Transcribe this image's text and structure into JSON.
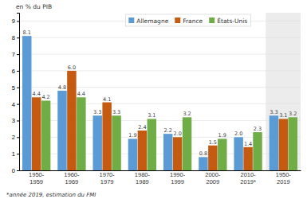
{
  "chart_data": {
    "type": "bar",
    "ylabel": "en % du PIB",
    "footnote": "*année 2019, estimation du FMI",
    "categories": [
      "1950-\n1959",
      "1960-\n1969",
      "1970-\n1979",
      "1980-\n1989",
      "1990-\n1999",
      "2000-\n2009",
      "2010-\n2019*",
      "1950-\n2019"
    ],
    "series": [
      {
        "name": "Allemagne",
        "color": "#5b9bd5",
        "values": [
          8.1,
          4.8,
          3.3,
          1.9,
          2.2,
          0.8,
          2.0,
          3.3
        ],
        "value_labels": [
          "8.1",
          "4.8",
          "3.3",
          "1.9",
          "2.2",
          "0.8",
          "2.0",
          "3.3"
        ]
      },
      {
        "name": "France",
        "color": "#c55a11",
        "values": [
          4.4,
          6.0,
          4.1,
          2.4,
          2.0,
          1.5,
          1.4,
          3.1
        ],
        "value_labels": [
          "4.4",
          "6.0",
          "4.1",
          "2.4",
          "2.0",
          "1.5",
          "1.4",
          "3.1"
        ]
      },
      {
        "name": "États-Unis",
        "color": "#70ad47",
        "values": [
          4.2,
          4.4,
          3.3,
          3.1,
          3.2,
          1.9,
          2.3,
          3.2
        ],
        "value_labels": [
          "4.2",
          "4.4",
          "3.3",
          "3.1",
          "3.2",
          "1.9",
          "2.3",
          "3.2"
        ]
      }
    ],
    "ylim": [
      0,
      9.5
    ],
    "yticks": [
      0,
      1,
      2,
      3,
      4,
      5,
      6,
      7,
      8,
      9
    ],
    "grid": true,
    "legend": "top",
    "data_labels": true
  }
}
